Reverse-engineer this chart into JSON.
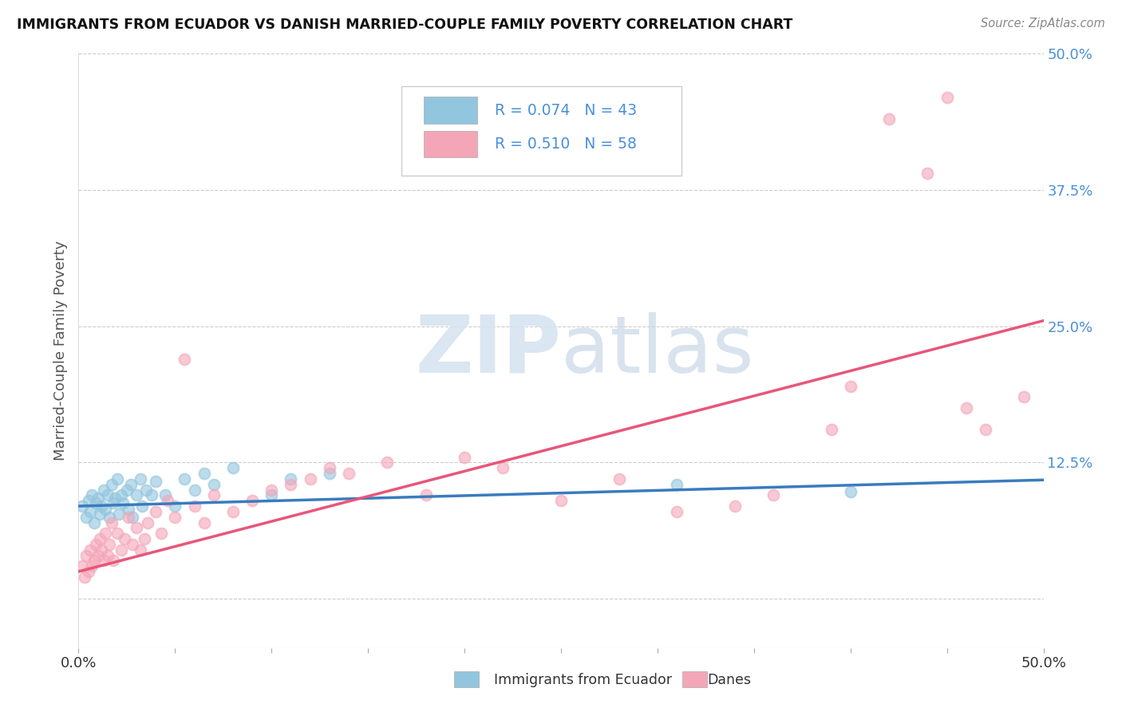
{
  "title": "IMMIGRANTS FROM ECUADOR VS DANISH MARRIED-COUPLE FAMILY POVERTY CORRELATION CHART",
  "source": "Source: ZipAtlas.com",
  "ylabel": "Married-Couple Family Poverty",
  "legend_label1": "Immigrants from Ecuador",
  "legend_label2": "Danes",
  "R1": 0.074,
  "N1": 43,
  "R2": 0.51,
  "N2": 58,
  "xmin": 0.0,
  "xmax": 0.5,
  "ymin": -0.045,
  "ymax": 0.5,
  "color_blue": "#92c5de",
  "color_pink": "#f4a6b8",
  "line_blue": "#3a7bbf",
  "line_pink": "#e8567a",
  "watermark_color": "#d6e4f0",
  "background": "#ffffff",
  "scatter_blue_x": [
    0.002,
    0.004,
    0.005,
    0.006,
    0.007,
    0.008,
    0.009,
    0.01,
    0.011,
    0.012,
    0.013,
    0.014,
    0.015,
    0.016,
    0.017,
    0.018,
    0.019,
    0.02,
    0.021,
    0.022,
    0.023,
    0.025,
    0.026,
    0.027,
    0.028,
    0.03,
    0.032,
    0.033,
    0.035,
    0.038,
    0.04,
    0.045,
    0.05,
    0.055,
    0.06,
    0.065,
    0.07,
    0.08,
    0.1,
    0.11,
    0.13,
    0.31,
    0.4
  ],
  "scatter_blue_y": [
    0.085,
    0.075,
    0.09,
    0.08,
    0.095,
    0.07,
    0.088,
    0.092,
    0.078,
    0.085,
    0.1,
    0.082,
    0.095,
    0.075,
    0.105,
    0.088,
    0.092,
    0.11,
    0.078,
    0.095,
    0.088,
    0.1,
    0.082,
    0.105,
    0.075,
    0.095,
    0.11,
    0.085,
    0.1,
    0.095,
    0.108,
    0.095,
    0.085,
    0.11,
    0.1,
    0.115,
    0.105,
    0.12,
    0.095,
    0.11,
    0.115,
    0.105,
    0.098
  ],
  "scatter_pink_x": [
    0.002,
    0.003,
    0.004,
    0.005,
    0.006,
    0.007,
    0.008,
    0.009,
    0.01,
    0.011,
    0.012,
    0.013,
    0.014,
    0.015,
    0.016,
    0.017,
    0.018,
    0.02,
    0.022,
    0.024,
    0.026,
    0.028,
    0.03,
    0.032,
    0.034,
    0.036,
    0.04,
    0.043,
    0.046,
    0.05,
    0.055,
    0.06,
    0.065,
    0.07,
    0.08,
    0.09,
    0.1,
    0.11,
    0.12,
    0.13,
    0.14,
    0.16,
    0.18,
    0.2,
    0.22,
    0.25,
    0.28,
    0.31,
    0.34,
    0.36,
    0.39,
    0.4,
    0.42,
    0.44,
    0.45,
    0.46,
    0.47,
    0.49
  ],
  "scatter_pink_y": [
    0.03,
    0.02,
    0.04,
    0.025,
    0.045,
    0.03,
    0.035,
    0.05,
    0.04,
    0.055,
    0.045,
    0.035,
    0.06,
    0.04,
    0.05,
    0.07,
    0.035,
    0.06,
    0.045,
    0.055,
    0.075,
    0.05,
    0.065,
    0.045,
    0.055,
    0.07,
    0.08,
    0.06,
    0.09,
    0.075,
    0.22,
    0.085,
    0.07,
    0.095,
    0.08,
    0.09,
    0.1,
    0.105,
    0.11,
    0.12,
    0.115,
    0.125,
    0.095,
    0.13,
    0.12,
    0.09,
    0.11,
    0.08,
    0.085,
    0.095,
    0.155,
    0.195,
    0.44,
    0.39,
    0.46,
    0.175,
    0.155,
    0.185
  ],
  "blue_line_slope": 0.048,
  "blue_line_intercept": 0.085,
  "pink_line_slope": 0.46,
  "pink_line_intercept": 0.025
}
